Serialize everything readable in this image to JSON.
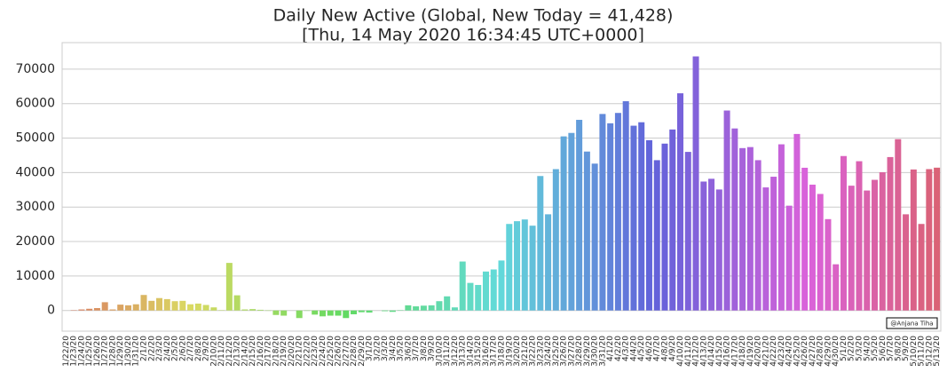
{
  "chart_data": {
    "type": "bar",
    "title": "Daily New Active (Global, New Today = 41,428)",
    "subtitle": "[Thu, 14 May 2020 16:34:45 UTC+0000]",
    "annotation": "@Anjana Tiha",
    "categories": [
      "1/22/20",
      "1/23/20",
      "1/24/20",
      "1/25/20",
      "1/26/20",
      "1/27/20",
      "1/28/20",
      "1/29/20",
      "1/30/20",
      "1/31/20",
      "2/1/20",
      "2/2/20",
      "2/3/20",
      "2/4/20",
      "2/5/20",
      "2/6/20",
      "2/7/20",
      "2/8/20",
      "2/9/20",
      "2/10/20",
      "2/11/20",
      "2/12/20",
      "2/13/20",
      "2/14/20",
      "2/15/20",
      "2/16/20",
      "2/17/20",
      "2/18/20",
      "2/19/20",
      "2/20/20",
      "2/21/20",
      "2/22/20",
      "2/23/20",
      "2/24/20",
      "2/25/20",
      "2/26/20",
      "2/27/20",
      "2/28/20",
      "2/29/20",
      "3/1/20",
      "3/2/20",
      "3/3/20",
      "3/4/20",
      "3/5/20",
      "3/6/20",
      "3/7/20",
      "3/8/20",
      "3/9/20",
      "3/10/20",
      "3/11/20",
      "3/12/20",
      "3/13/20",
      "3/14/20",
      "3/15/20",
      "3/16/20",
      "3/17/20",
      "3/18/20",
      "3/19/20",
      "3/20/20",
      "3/21/20",
      "3/22/20",
      "3/23/20",
      "3/24/20",
      "3/25/20",
      "3/26/20",
      "3/27/20",
      "3/28/20",
      "3/29/20",
      "3/30/20",
      "3/31/20",
      "4/1/20",
      "4/2/20",
      "4/3/20",
      "4/4/20",
      "4/5/20",
      "4/6/20",
      "4/7/20",
      "4/8/20",
      "4/9/20",
      "4/10/20",
      "4/11/20",
      "4/12/20",
      "4/13/20",
      "4/14/20",
      "4/15/20",
      "4/16/20",
      "4/17/20",
      "4/18/20",
      "4/19/20",
      "4/20/20",
      "4/21/20",
      "4/22/20",
      "4/23/20",
      "4/24/20",
      "4/25/20",
      "4/26/20",
      "4/27/20",
      "4/28/20",
      "4/29/20",
      "4/30/20",
      "5/1/20",
      "5/2/20",
      "5/3/20",
      "5/4/20",
      "5/5/20",
      "5/6/20",
      "5/7/20",
      "5/8/20",
      "5/9/20",
      "5/10/20",
      "5/11/20",
      "5/12/20",
      "5/13/20"
    ],
    "values": [
      0,
      100,
      300,
      500,
      700,
      2400,
      300,
      1700,
      1500,
      1800,
      4500,
      2800,
      3600,
      3300,
      2700,
      2800,
      1800,
      2000,
      1600,
      900,
      100,
      13800,
      4400,
      300,
      400,
      200,
      -100,
      -1300,
      -1500,
      0,
      -2200,
      -100,
      -1200,
      -1700,
      -1500,
      -1500,
      -2200,
      -1100,
      -500,
      -600,
      0,
      -200,
      -400,
      100,
      1500,
      1200,
      1400,
      1500,
      2700,
      4100,
      900,
      14200,
      8000,
      7400,
      11300,
      11900,
      14500,
      25100,
      25900,
      26400,
      24600,
      39000,
      27900,
      41000,
      50500,
      51500,
      55300,
      46100,
      42600,
      57000,
      54300,
      57300,
      60700,
      53600,
      54600,
      49400,
      43600,
      48400,
      52500,
      63000,
      46000,
      73700,
      37400,
      38200,
      35100,
      58000,
      52800,
      47100,
      47400,
      43600,
      35700,
      38800,
      48200,
      30400,
      51200,
      41400,
      36500,
      33800,
      26500,
      13400,
      44800,
      36200,
      43300,
      34800,
      37900,
      40100,
      44500,
      49700,
      27900,
      40900,
      25100,
      41000,
      41428
    ],
    "palette": {
      "type": "hsl",
      "hue_start": 12,
      "hue_end": 350,
      "saturation": 62,
      "lightness": 62
    },
    "ylim": [
      -6000,
      77700
    ],
    "yticks": [
      0,
      10000,
      20000,
      30000,
      40000,
      50000,
      60000,
      70000
    ],
    "grid": true
  }
}
